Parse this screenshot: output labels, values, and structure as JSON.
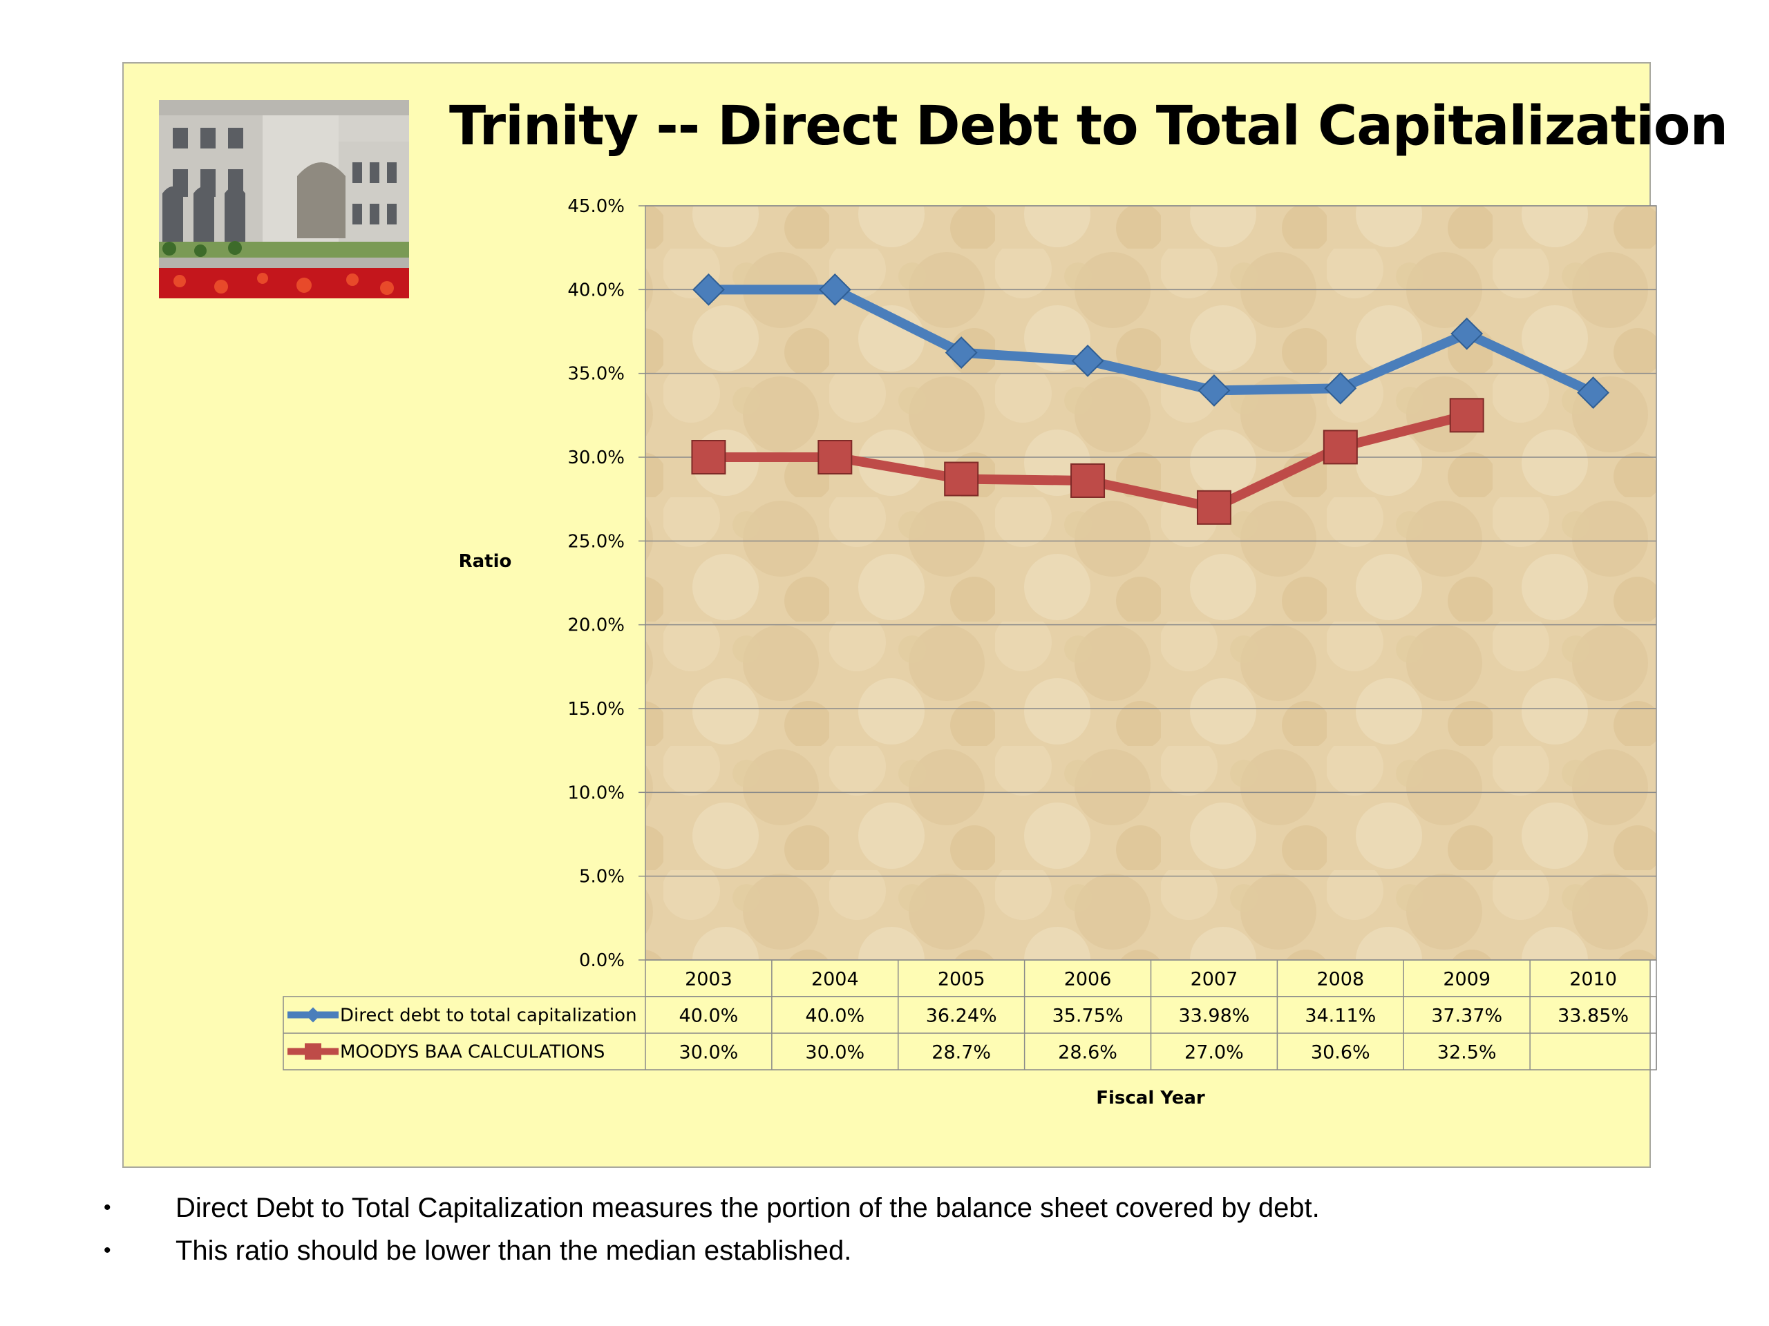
{
  "chart_data": {
    "type": "line",
    "title": "Trinity -- Direct Debt to Total Capitalization",
    "xlabel": "Fiscal Year",
    "ylabel": "Ratio",
    "ylim": [
      0,
      45
    ],
    "y_ticks": [
      "45.0%",
      "40.0%",
      "35.0%",
      "30.0%",
      "25.0%",
      "20.0%",
      "15.0%",
      "10.0%",
      "5.0%",
      "0.0%"
    ],
    "y_tick_values": [
      45,
      40,
      35,
      30,
      25,
      20,
      15,
      10,
      5,
      0
    ],
    "categories": [
      "2003",
      "2004",
      "2005",
      "2006",
      "2007",
      "2008",
      "2009",
      "2010"
    ],
    "grid": true,
    "legend": "data-table",
    "series": [
      {
        "name": "Direct debt to total  capitalization",
        "color": "#4a7ebb",
        "marker": "diamond",
        "values": [
          40.0,
          40.0,
          36.24,
          35.75,
          33.98,
          34.11,
          37.37,
          33.85
        ],
        "labels": [
          "40.0%",
          "40.0%",
          "36.24%",
          "35.75%",
          "33.98%",
          "34.11%",
          "37.37%",
          "33.85%"
        ]
      },
      {
        "name": "MOODYS BAA CALCULATIONS",
        "color": "#be4b48",
        "marker": "square",
        "values": [
          30.0,
          30.0,
          28.7,
          28.6,
          27.0,
          30.6,
          32.5,
          null
        ],
        "labels": [
          "30.0%",
          "30.0%",
          "28.7%",
          "28.6%",
          "27.0%",
          "30.6%",
          "32.5%",
          ""
        ]
      }
    ]
  },
  "photo": {
    "icon": "building-photo-icon"
  },
  "notes": [
    "Direct Debt to Total Capitalization measures the portion of the balance sheet covered by debt.",
    "This ratio should be lower than the median established."
  ],
  "bullet_char": "•"
}
